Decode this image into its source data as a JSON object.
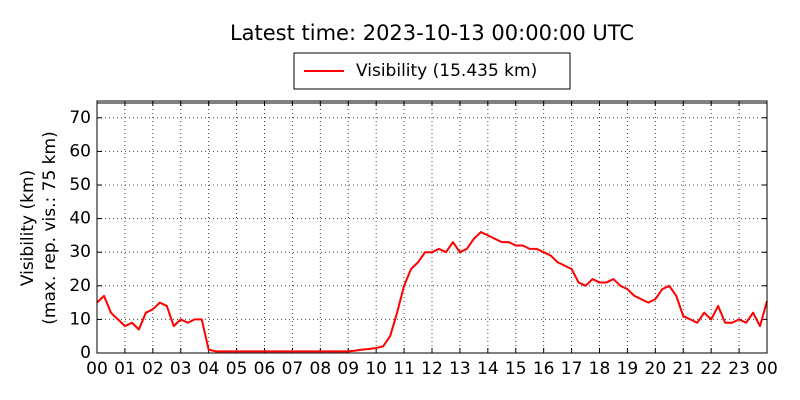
{
  "chart_data": {
    "type": "line",
    "title": "Latest time: 2023-10-13 00:00:00 UTC",
    "ylabel": [
      "Visibility (km)",
      "(max. rep. vis.: 75 km)"
    ],
    "x": [
      0,
      0.25,
      0.5,
      0.75,
      1,
      1.25,
      1.5,
      1.75,
      2,
      2.25,
      2.5,
      2.75,
      3,
      3.25,
      3.5,
      3.75,
      4,
      4.25,
      4.5,
      4.75,
      5,
      5.25,
      5.5,
      5.75,
      6,
      6.25,
      6.5,
      6.75,
      7,
      7.25,
      7.5,
      7.75,
      8,
      8.25,
      8.5,
      8.75,
      9,
      9.25,
      9.5,
      9.75,
      10,
      10.25,
      10.5,
      10.75,
      11,
      11.25,
      11.5,
      11.75,
      12,
      12.25,
      12.5,
      12.75,
      13,
      13.25,
      13.5,
      13.75,
      14,
      14.25,
      14.5,
      14.75,
      15,
      15.25,
      15.5,
      15.75,
      16,
      16.25,
      16.5,
      16.75,
      17,
      17.25,
      17.5,
      17.75,
      18,
      18.25,
      18.5,
      18.75,
      19,
      19.25,
      19.5,
      19.75,
      20,
      20.25,
      20.5,
      20.75,
      21,
      21.25,
      21.5,
      21.75,
      22,
      22.25,
      22.5,
      22.75,
      23,
      23.25,
      23.5,
      23.75,
      24
    ],
    "series": [
      {
        "name": "Visibility (15.435 km)",
        "color": "#ff0000",
        "values": [
          15,
          17,
          12,
          10,
          8,
          9,
          7,
          12,
          13,
          15,
          14,
          8,
          10,
          9,
          10,
          10,
          1,
          0.5,
          0.5,
          0.5,
          0.5,
          0.5,
          0.5,
          0.5,
          0.5,
          0.5,
          0.5,
          0.5,
          0.5,
          0.5,
          0.5,
          0.5,
          0.5,
          0.5,
          0.5,
          0.5,
          0.5,
          0.7,
          1,
          1.2,
          1.5,
          2,
          5,
          12,
          20,
          25,
          27,
          30,
          30,
          31,
          30,
          33,
          30,
          31,
          34,
          36,
          35,
          34,
          33,
          33,
          32,
          32,
          31,
          31,
          30,
          29,
          27,
          26,
          25,
          21,
          20,
          22,
          21,
          21,
          22,
          20,
          19,
          17,
          16,
          15,
          16,
          19,
          20,
          17,
          11,
          10,
          9,
          12,
          10,
          14,
          9,
          9,
          10,
          9,
          12,
          8,
          15.435
        ]
      }
    ],
    "xlim": [
      0,
      24
    ],
    "xticks": [
      {
        "value": 0,
        "label": "00"
      },
      {
        "value": 1,
        "label": "01"
      },
      {
        "value": 2,
        "label": "02"
      },
      {
        "value": 3,
        "label": "03"
      },
      {
        "value": 4,
        "label": "04"
      },
      {
        "value": 5,
        "label": "05"
      },
      {
        "value": 6,
        "label": "06"
      },
      {
        "value": 7,
        "label": "07"
      },
      {
        "value": 8,
        "label": "08"
      },
      {
        "value": 9,
        "label": "09"
      },
      10,
      11,
      12,
      13,
      14,
      15,
      16,
      17,
      18,
      19,
      20,
      21,
      22,
      23,
      {
        "value": 24,
        "label": "00"
      }
    ],
    "ylim": [
      0,
      75
    ],
    "yticks": [
      0,
      10,
      20,
      30,
      40,
      50,
      60,
      70
    ],
    "grid": true
  }
}
